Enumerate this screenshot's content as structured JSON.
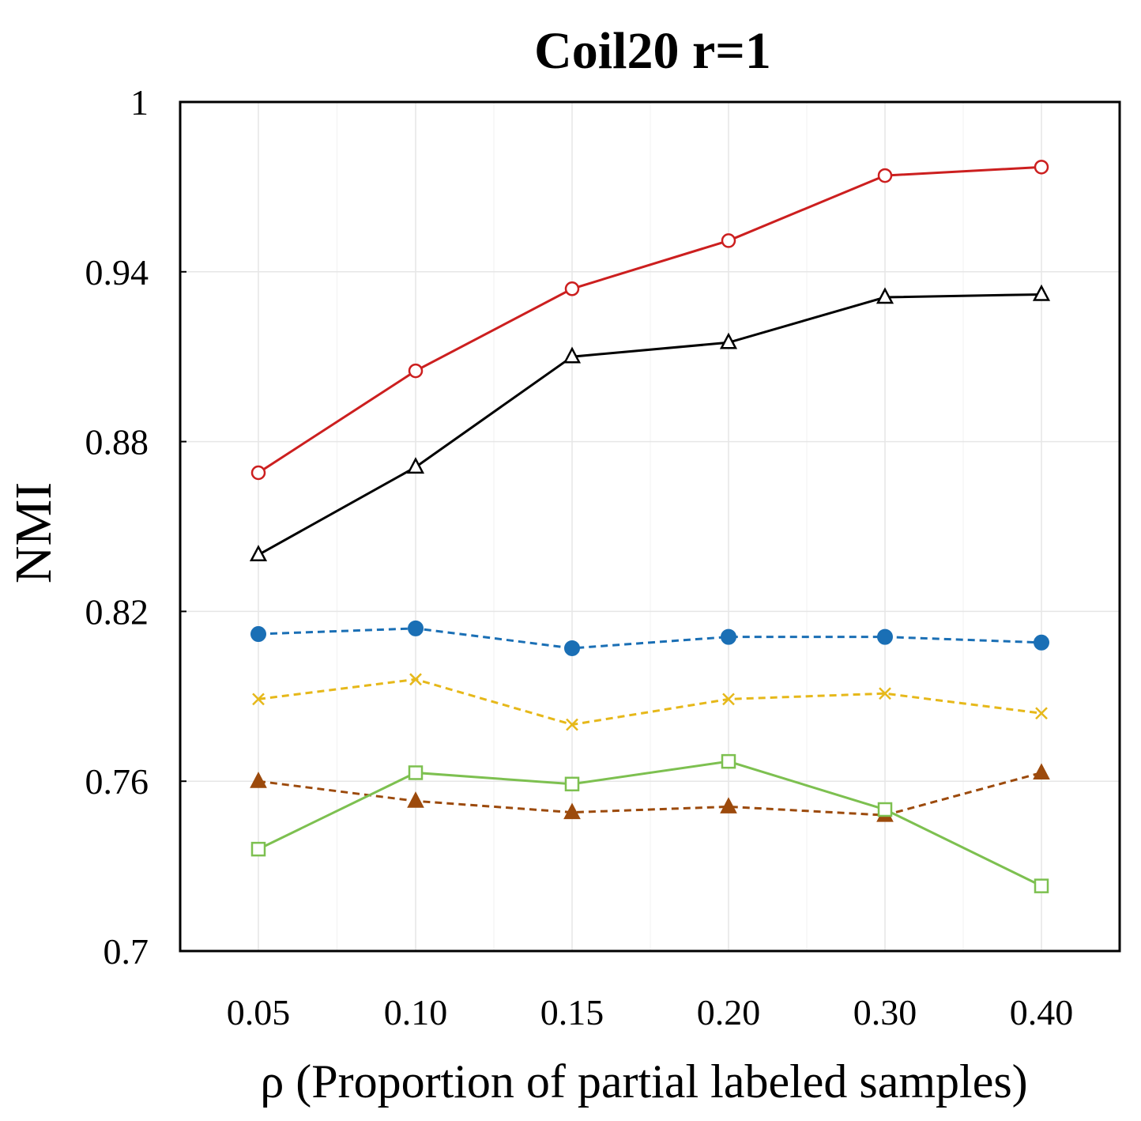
{
  "chart_data": {
    "type": "line",
    "title": "Coil20 r=1",
    "xlabel": "ρ (Proportion of partial labeled samples)",
    "ylabel": "NMI",
    "categories": [
      "0.05",
      "0.10",
      "0.15",
      "0.20",
      "0.30",
      "0.40"
    ],
    "ylim": [
      0.7,
      1.0
    ],
    "yticks": [
      0.7,
      0.76,
      0.82,
      0.88,
      0.94,
      1.0
    ],
    "ytick_labels": [
      "0.7",
      "0.76",
      "0.82",
      "0.88",
      "0.94",
      "1"
    ],
    "grid": true,
    "series": [
      {
        "name": "red-circle",
        "color": "#cc1f1f",
        "marker": "circle-open",
        "dash": "solid",
        "values": [
          0.869,
          0.905,
          0.934,
          0.951,
          0.974,
          0.977
        ]
      },
      {
        "name": "black-triangle",
        "color": "#000000",
        "marker": "triangle-open",
        "dash": "solid",
        "values": [
          0.84,
          0.871,
          0.91,
          0.915,
          0.931,
          0.932
        ]
      },
      {
        "name": "blue-dot",
        "color": "#1a6fb5",
        "marker": "circle-filled",
        "dash": "dashed",
        "values": [
          0.812,
          0.814,
          0.807,
          0.811,
          0.811,
          0.809
        ]
      },
      {
        "name": "yellow-x",
        "color": "#e6b81a",
        "marker": "x",
        "dash": "dashed",
        "values": [
          0.789,
          0.796,
          0.78,
          0.789,
          0.791,
          0.784
        ]
      },
      {
        "name": "brown-triangle",
        "color": "#9c4a0c",
        "marker": "triangle-filled",
        "dash": "dashed",
        "values": [
          0.76,
          0.753,
          0.749,
          0.751,
          0.748,
          0.763
        ]
      },
      {
        "name": "green-square",
        "color": "#7dc050",
        "marker": "square-open",
        "dash": "solid",
        "values": [
          0.736,
          0.763,
          0.759,
          0.767,
          0.75,
          0.723
        ]
      }
    ]
  }
}
